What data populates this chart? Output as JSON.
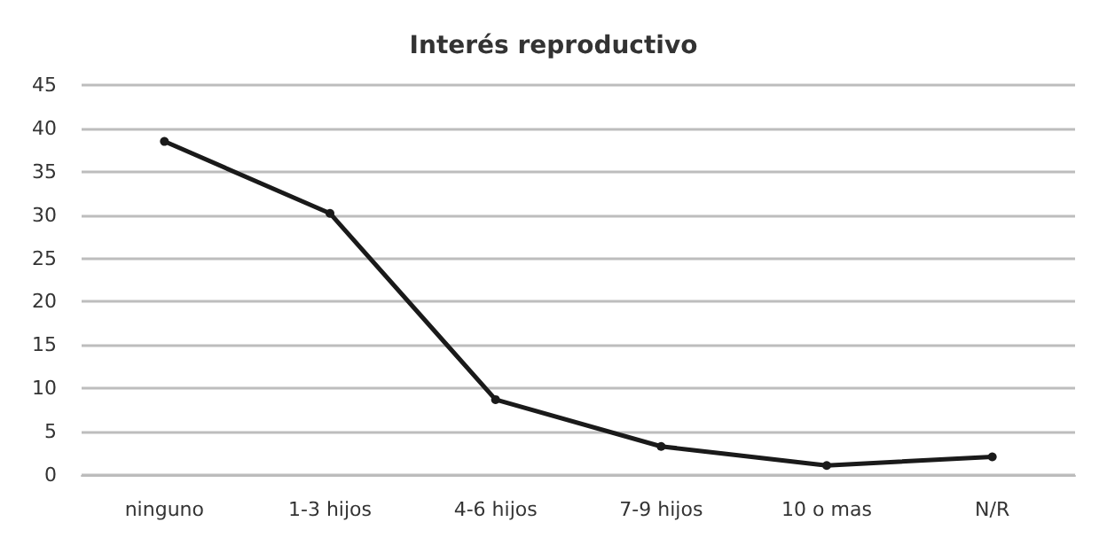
{
  "chart_data": {
    "type": "line",
    "title": "Interés reproductivo",
    "categories": [
      "ninguno",
      "1-3 hijos",
      "4-6 hijos",
      "7-9 hijos",
      "10 o mas",
      "N/R"
    ],
    "series": [
      {
        "color": "#1a1a1a",
        "values": [
          38.5,
          30.2,
          8.7,
          3.3,
          1.1,
          2.1
        ]
      }
    ],
    "ylim": [
      0,
      45
    ],
    "yticks": [
      0,
      5,
      10,
      15,
      20,
      25,
      30,
      35,
      40,
      45
    ],
    "grid": "y",
    "marker": "circle",
    "line_style": "solid"
  }
}
